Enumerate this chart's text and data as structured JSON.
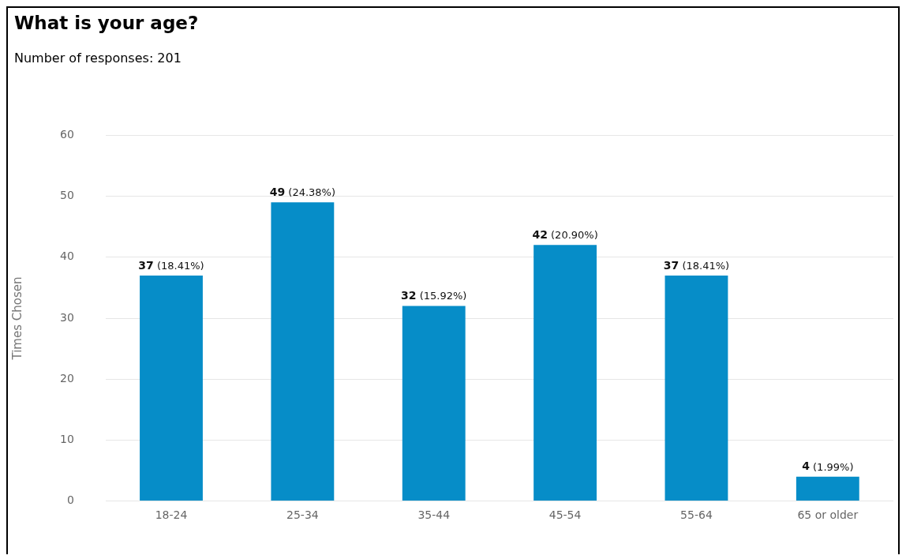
{
  "chart_data": {
    "type": "bar",
    "title": "What is your age?",
    "subtitle": "Number of responses: 201",
    "ylabel": "Times Chosen",
    "categories": [
      "18-24",
      "25-34",
      "35-44",
      "45-54",
      "55-64",
      "65 or older"
    ],
    "values": [
      37,
      49,
      32,
      42,
      37,
      4
    ],
    "value_labels": [
      "37 (18.41%)",
      "49 (24.38%)",
      "32 (15.92%)",
      "42 (20.90%)",
      "37 (18.41%)",
      "4 (1.99%)"
    ],
    "color": "#068dc8",
    "ylim": [
      0,
      60
    ],
    "yticks": [
      0,
      10,
      20,
      30,
      40,
      50,
      60
    ],
    "grid": "y",
    "legend": false
  }
}
